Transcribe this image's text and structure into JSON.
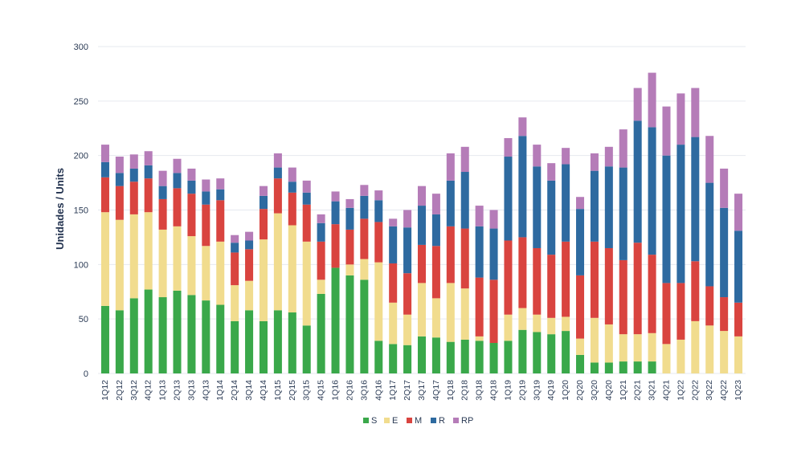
{
  "chart_data": {
    "type": "bar",
    "stacked": true,
    "ylabel": "Unidades / Units",
    "xlabel": "",
    "ylim": [
      0,
      300
    ],
    "yticks": [
      0,
      50,
      100,
      150,
      200,
      250,
      300
    ],
    "grid": true,
    "legend_position": "bottom",
    "categories": [
      "1Q12",
      "2Q12",
      "3Q12",
      "4Q12",
      "1Q13",
      "2Q13",
      "3Q13",
      "4Q13",
      "1Q14",
      "2Q14",
      "3Q14",
      "4Q14",
      "1Q15",
      "2Q15",
      "3Q15",
      "4Q15",
      "1Q16",
      "2Q16",
      "3Q16",
      "4Q16",
      "1Q17",
      "2Q17",
      "3Q17",
      "4Q17",
      "1Q18",
      "2Q18",
      "3Q18",
      "4Q18",
      "1Q19",
      "2Q19",
      "3Q19",
      "4Q19",
      "1Q20",
      "2Q20",
      "3Q20",
      "4Q20",
      "1Q21",
      "2Q21",
      "3Q21",
      "4Q21",
      "1Q22",
      "2Q22",
      "3Q22",
      "4Q22",
      "1Q23"
    ],
    "x_tick_labels": [
      "1Q12",
      "2Q12",
      "3Q12",
      "4Q12",
      "1Q13",
      "2Q13",
      "3Q13",
      "4Q13",
      "1Q14",
      "2Q14",
      "3Q14",
      "4Q14",
      "1Q15",
      "2Q15",
      "3Q15",
      "4Q15",
      "1Q16",
      "2Q16",
      "3Q16",
      "4Q16",
      "1Q17",
      "2Q17",
      "3Q17",
      "4Q17",
      "1Q18",
      "2Q18",
      "3Q18",
      "4Q18",
      "1Q19",
      "2Q19",
      "3Q19",
      "4Q19",
      "1Q20",
      "2Q20",
      "3Q20",
      "4Q20",
      "1Q21",
      "2Q21",
      "3Q21",
      "4Q21",
      "1Q22",
      "2Q22",
      "3Q22",
      "4Q22",
      "1Q23"
    ],
    "series": [
      {
        "name": "S",
        "color": "#3aa84a",
        "values": [
          62,
          58,
          69,
          77,
          70,
          76,
          72,
          67,
          63,
          48,
          58,
          48,
          58,
          56,
          44,
          73,
          97,
          90,
          86,
          30,
          27,
          26,
          34,
          33,
          29,
          31,
          30,
          28,
          30,
          40,
          38,
          36,
          39,
          17,
          10,
          10,
          11,
          11,
          11,
          0,
          0,
          0,
          0,
          0,
          0
        ]
      },
      {
        "name": "E",
        "color": "#f1dc8e",
        "values": [
          86,
          83,
          77,
          71,
          62,
          59,
          54,
          50,
          58,
          33,
          27,
          75,
          89,
          80,
          77,
          13,
          0,
          10,
          19,
          72,
          38,
          28,
          49,
          36,
          54,
          47,
          4,
          0,
          24,
          20,
          16,
          15,
          13,
          15,
          41,
          35,
          25,
          25,
          26,
          27,
          31,
          48,
          44,
          39,
          34
        ]
      },
      {
        "name": "M",
        "color": "#d9443f",
        "values": [
          32,
          31,
          30,
          31,
          28,
          35,
          39,
          38,
          38,
          30,
          29,
          28,
          32,
          30,
          34,
          35,
          40,
          32,
          37,
          37,
          36,
          38,
          35,
          48,
          52,
          55,
          54,
          58,
          68,
          65,
          61,
          58,
          69,
          58,
          70,
          70,
          68,
          84,
          72,
          56,
          52,
          55,
          36,
          31,
          31
        ]
      },
      {
        "name": "R",
        "color": "#2e6aa0",
        "values": [
          14,
          12,
          12,
          12,
          12,
          14,
          12,
          12,
          10,
          9,
          8,
          12,
          10,
          10,
          11,
          17,
          21,
          20,
          21,
          20,
          34,
          42,
          36,
          29,
          42,
          52,
          47,
          47,
          77,
          93,
          75,
          68,
          71,
          61,
          65,
          75,
          85,
          112,
          117,
          117,
          127,
          114,
          95,
          82,
          66
        ]
      },
      {
        "name": "RP",
        "color": "#b57cb8",
        "values": [
          16,
          15,
          13,
          13,
          14,
          13,
          11,
          11,
          10,
          7,
          8,
          9,
          13,
          13,
          11,
          8,
          9,
          8,
          10,
          9,
          7,
          16,
          18,
          19,
          25,
          23,
          19,
          17,
          17,
          17,
          20,
          16,
          15,
          11,
          16,
          18,
          35,
          30,
          50,
          45,
          47,
          45,
          43,
          36,
          34
        ]
      }
    ]
  },
  "legend": {
    "items": [
      {
        "label": "S",
        "color": "#3aa84a"
      },
      {
        "label": "E",
        "color": "#f1dc8e"
      },
      {
        "label": "M",
        "color": "#d9443f"
      },
      {
        "label": "R",
        "color": "#2e6aa0"
      },
      {
        "label": "RP",
        "color": "#b57cb8"
      }
    ]
  }
}
